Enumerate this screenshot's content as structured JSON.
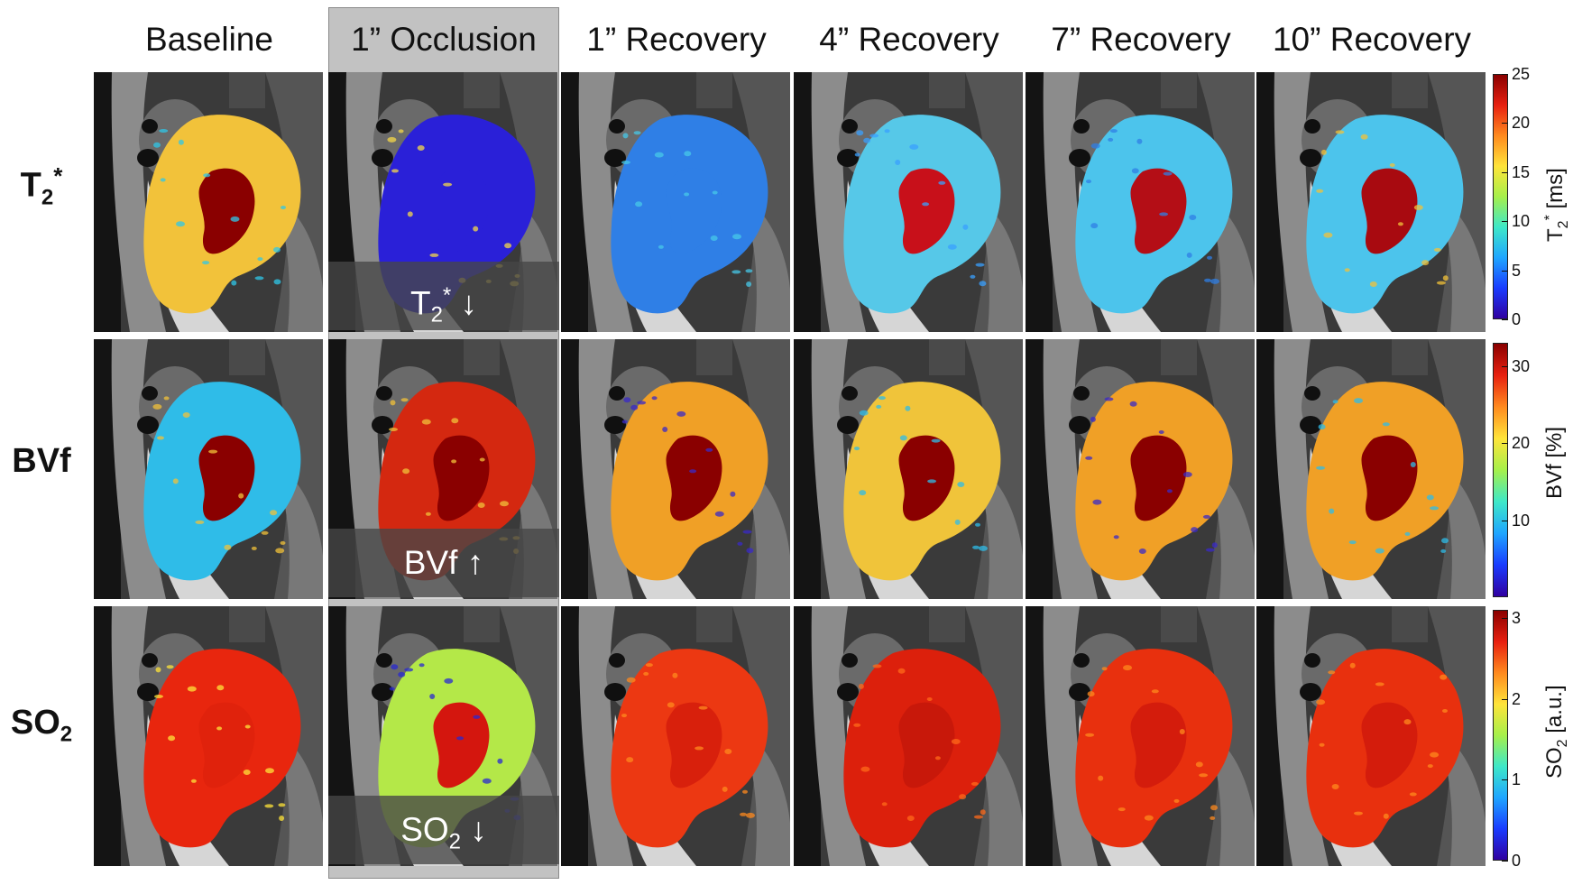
{
  "columns": [
    "Baseline",
    "1” Occlusion",
    "1” Recovery",
    "4” Recovery",
    "7” Recovery",
    "10” Recovery"
  ],
  "rows": [
    {
      "label_main": "T",
      "label_sub": "2",
      "label_sup": "*",
      "annotation_main": "T",
      "annotation_sub": "2",
      "annotation_sup": "*",
      "annotation_arrow": "↓"
    },
    {
      "label_main": "BVf",
      "annotation_main": "BVf",
      "annotation_arrow": "↑"
    },
    {
      "label_main": "SO",
      "label_sub": "2",
      "annotation_main": "SO",
      "annotation_sub": "2",
      "annotation_arrow": "↓"
    }
  ],
  "colorbars": [
    {
      "ticks": [
        "25",
        "20",
        "15",
        "10",
        "5",
        "0"
      ],
      "tick_values": [
        25,
        20,
        15,
        10,
        5,
        0
      ],
      "range": [
        0,
        25
      ],
      "label_main": "T",
      "label_sub": "2",
      "label_sup": "*",
      "label_unit": "[ms]"
    },
    {
      "ticks": [
        "30",
        "20",
        "10"
      ],
      "tick_values": [
        30,
        20,
        10
      ],
      "range": [
        0,
        33
      ],
      "label_main": "BVf",
      "label_unit": "[%]"
    },
    {
      "ticks": [
        "3",
        "2",
        "1",
        "0"
      ],
      "tick_values": [
        3,
        2,
        1,
        0
      ],
      "range": [
        0,
        3.1
      ],
      "label_main": "SO",
      "label_sub": "2",
      "label_unit": "[a.u.]"
    }
  ],
  "colors": {
    "highlight": "#c2c2c2",
    "colormap": [
      "#3000a0",
      "#1a3cff",
      "#1fa6ff",
      "#3ee8c8",
      "#a6f04a",
      "#ffe43a",
      "#ff8a1e",
      "#e82010",
      "#8a0000"
    ]
  }
}
